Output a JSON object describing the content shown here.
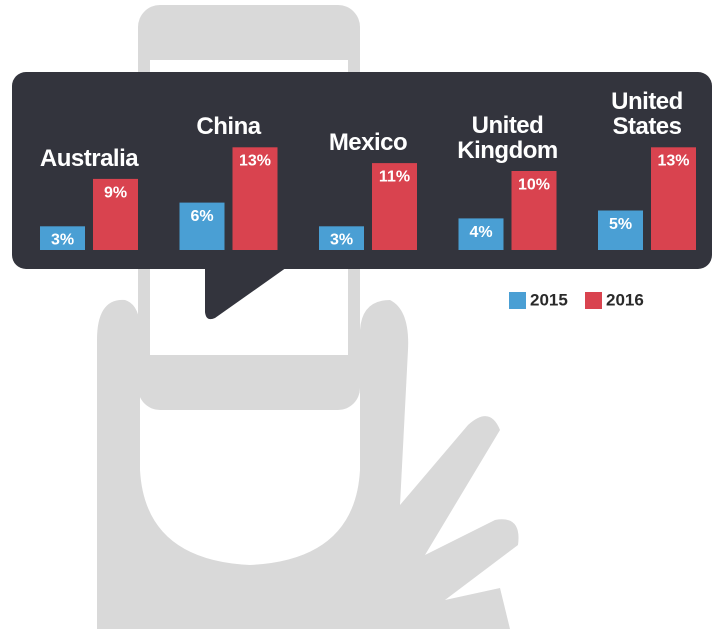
{
  "chart_data": {
    "type": "bar",
    "categories": [
      "Australia",
      "China",
      "Mexico",
      "United Kingdom",
      "United States"
    ],
    "series": [
      {
        "name": "2015",
        "color": "#4a9fd4",
        "values": [
          3,
          6,
          3,
          4,
          5
        ],
        "value_labels": [
          "3%",
          "6%",
          "3%",
          "4%",
          "5%"
        ]
      },
      {
        "name": "2016",
        "color": "#d9434f",
        "values": [
          9,
          13,
          11,
          10,
          13
        ],
        "value_labels": [
          "9%",
          "13%",
          "11%",
          "10%",
          "13%"
        ]
      }
    ]
  }
}
